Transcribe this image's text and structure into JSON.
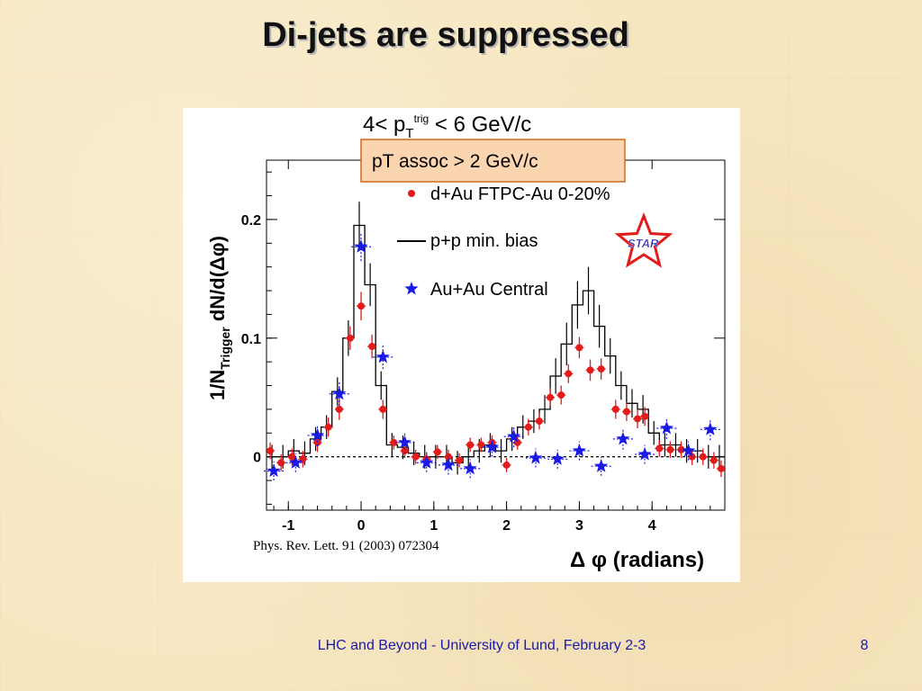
{
  "slide": {
    "title": "Di-jets are suppressed",
    "footer": "LHC and Beyond - University of Lund, February 2-3",
    "page_number": "8"
  },
  "chart_data": {
    "type": "scatter",
    "title": "4< p",
    "title_sub": "T",
    "title_sup": "trig",
    "title_tail": " < 6 GeV/c",
    "box_label": "pT assoc > 2 GeV/c",
    "xlabel": "Δ φ (radians)",
    "ylabel": "1/N",
    "ylabel_sub": "Trigger",
    "ylabel_tail": " dN/d(Δφ)",
    "citation": "Phys. Rev. Lett. 91 (2003) 072304",
    "logo_text": "STAR",
    "xlim": [
      -1.3,
      5.0
    ],
    "ylim": [
      -0.045,
      0.25
    ],
    "x_ticks": [
      -1,
      0,
      1,
      2,
      3,
      4
    ],
    "x_tick_labels": [
      "-1",
      "0",
      "1",
      "2",
      "3",
      "4"
    ],
    "y_ticks": [
      0,
      0.1,
      0.2
    ],
    "y_tick_labels": [
      "0",
      "0.1",
      "0.2"
    ],
    "legend_position": "top-right",
    "colors": {
      "dau": "#e21b1b",
      "pp": "#000000",
      "auau": "#1a1ae6",
      "box_fill": "#fbd5b0",
      "box_border": "#d2691e",
      "logo": "#e21b1b"
    },
    "series": [
      {
        "name": "d+Au FTPC-Au 0-20%",
        "style": "dot",
        "x": [
          -1.25,
          -1.1,
          -0.95,
          -0.8,
          -0.6,
          -0.45,
          -0.3,
          -0.15,
          0.0,
          0.15,
          0.3,
          0.45,
          0.6,
          0.75,
          0.9,
          1.05,
          1.2,
          1.35,
          1.5,
          1.65,
          1.8,
          2.0,
          2.15,
          2.3,
          2.45,
          2.6,
          2.75,
          2.85,
          3.0,
          3.15,
          3.3,
          3.5,
          3.65,
          3.8,
          3.9,
          4.1,
          4.25,
          4.4,
          4.55,
          4.7,
          4.85,
          4.95
        ],
        "y": [
          0.005,
          -0.005,
          0.0,
          -0.002,
          0.012,
          0.025,
          0.04,
          0.1,
          0.127,
          0.093,
          0.04,
          0.012,
          0.005,
          0.0,
          -0.002,
          0.004,
          0.0,
          -0.003,
          0.01,
          0.01,
          0.012,
          -0.007,
          0.012,
          0.025,
          0.03,
          0.05,
          0.052,
          0.07,
          0.092,
          0.073,
          0.074,
          0.04,
          0.038,
          0.032,
          0.034,
          0.007,
          0.006,
          0.006,
          0.0,
          0.0,
          -0.003,
          -0.01
        ],
        "yerr": [
          0.007,
          0.007,
          0.007,
          0.007,
          0.008,
          0.008,
          0.009,
          0.01,
          0.012,
          0.01,
          0.008,
          0.006,
          0.006,
          0.006,
          0.006,
          0.006,
          0.006,
          0.006,
          0.006,
          0.006,
          0.006,
          0.006,
          0.006,
          0.007,
          0.007,
          0.008,
          0.008,
          0.008,
          0.009,
          0.009,
          0.009,
          0.008,
          0.008,
          0.008,
          0.008,
          0.007,
          0.007,
          0.007,
          0.007,
          0.007,
          0.007,
          0.007
        ]
      },
      {
        "name": "p+p min. bias",
        "style": "step",
        "bin_edges": [
          -1.3,
          -1.15,
          -1.0,
          -0.85,
          -0.7,
          -0.55,
          -0.4,
          -0.25,
          -0.1,
          0.05,
          0.2,
          0.35,
          0.5,
          0.65,
          0.8,
          0.95,
          1.1,
          1.25,
          1.4,
          1.55,
          1.7,
          1.85,
          2.0,
          2.15,
          2.3,
          2.45,
          2.6,
          2.75,
          2.9,
          3.05,
          3.2,
          3.35,
          3.5,
          3.65,
          3.8,
          3.95,
          4.1,
          4.25,
          4.4,
          4.55,
          4.7,
          4.85,
          5.0
        ],
        "values": [
          0.0,
          0.0,
          0.005,
          0.003,
          0.015,
          0.025,
          0.055,
          0.1,
          0.195,
          0.145,
          0.06,
          0.01,
          0.008,
          0.003,
          0.0,
          0.0,
          0.0,
          -0.005,
          0.0,
          0.005,
          0.01,
          0.005,
          0.015,
          0.025,
          0.03,
          0.04,
          0.068,
          0.095,
          0.128,
          0.14,
          0.11,
          0.085,
          0.06,
          0.045,
          0.04,
          0.02,
          0.01,
          0.01,
          0.005,
          0.005,
          0.0,
          0.0
        ],
        "yerr": [
          0.01,
          0.01,
          0.01,
          0.01,
          0.01,
          0.01,
          0.012,
          0.015,
          0.02,
          0.018,
          0.012,
          0.01,
          0.01,
          0.01,
          0.01,
          0.01,
          0.01,
          0.01,
          0.01,
          0.01,
          0.01,
          0.01,
          0.01,
          0.01,
          0.01,
          0.012,
          0.015,
          0.018,
          0.02,
          0.02,
          0.018,
          0.015,
          0.012,
          0.012,
          0.012,
          0.01,
          0.01,
          0.01,
          0.01,
          0.01,
          0.01,
          0.01
        ]
      },
      {
        "name": "Au+Au Central",
        "style": "star",
        "x": [
          -1.2,
          -0.9,
          -0.6,
          -0.3,
          0.0,
          0.3,
          0.6,
          0.9,
          1.2,
          1.5,
          1.8,
          2.1,
          2.4,
          2.7,
          3.0,
          3.3,
          3.6,
          3.9,
          4.2,
          4.5,
          4.8
        ],
        "y": [
          -0.012,
          -0.005,
          0.018,
          0.053,
          0.177,
          0.084,
          0.012,
          -0.005,
          -0.007,
          -0.01,
          0.008,
          0.017,
          -0.001,
          -0.002,
          0.005,
          -0.008,
          0.015,
          0.002,
          0.024,
          0.005,
          0.023
        ],
        "yerr": [
          0.008,
          0.008,
          0.009,
          0.01,
          0.012,
          0.01,
          0.009,
          0.008,
          0.008,
          0.008,
          0.008,
          0.009,
          0.008,
          0.008,
          0.008,
          0.008,
          0.009,
          0.008,
          0.009,
          0.008,
          0.009
        ]
      }
    ]
  }
}
